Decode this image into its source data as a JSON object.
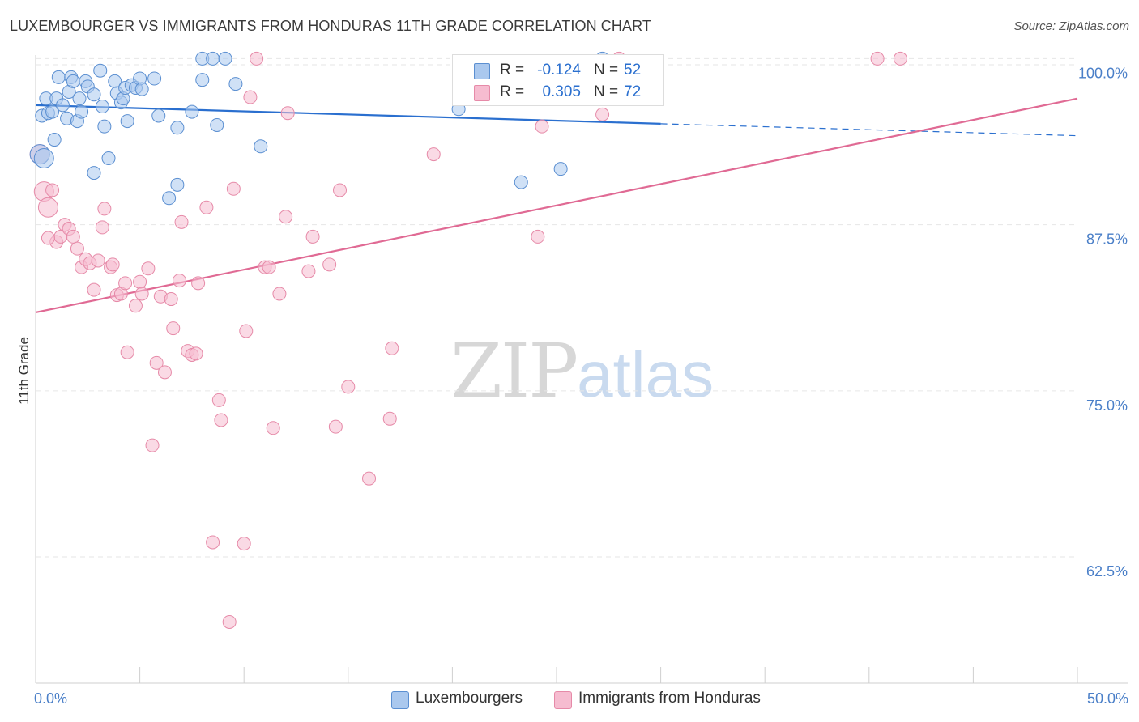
{
  "title": "LUXEMBOURGER VS IMMIGRANTS FROM HONDURAS 11TH GRADE CORRELATION CHART",
  "source": "Source: ZipAtlas.com",
  "watermark": {
    "zip": "ZIP",
    "atlas": "atlas"
  },
  "legend": {
    "r_label": "R =",
    "n_label": "N =",
    "rows": [
      {
        "r": "-0.124",
        "n": "52"
      },
      {
        "r": "0.305",
        "n": "72"
      }
    ]
  },
  "colors": {
    "blue_fill": "#aac8ee",
    "blue_stroke": "#5b8fd1",
    "blue_line": "#2a6fcf",
    "pink_fill": "#f6bcd0",
    "pink_stroke": "#e68aa8",
    "pink_line": "#e06a94",
    "tick_text": "#4a7fc8",
    "grid": "#e6e6e6"
  },
  "chart_data": {
    "type": "scatter",
    "title": "LUXEMBOURGER VS IMMIGRANTS FROM HONDURAS 11TH GRADE CORRELATION CHART",
    "xlabel": "",
    "ylabel": "11th Grade",
    "xlim": [
      0,
      50
    ],
    "ylim": [
      53,
      101
    ],
    "x_tick_labels": [
      "0.0%",
      "50.0%"
    ],
    "y_ticks": [
      {
        "value": 100,
        "label": "100.0%"
      },
      {
        "value": 87.5,
        "label": "87.5%"
      },
      {
        "value": 75,
        "label": "75.0%"
      },
      {
        "value": 62.5,
        "label": "62.5%"
      }
    ],
    "series": [
      {
        "name": "Luxembourgers",
        "r": -0.124,
        "n": 52,
        "trend": {
          "x0": 0,
          "y0": 96.5,
          "x1": 30,
          "y1": 95.1,
          "dash_to_x": 50,
          "dash_to_y": 94.2
        },
        "points": [
          [
            0.3,
            95.7
          ],
          [
            0.5,
            97.0
          ],
          [
            0.6,
            95.9
          ],
          [
            0.8,
            96.0
          ],
          [
            0.9,
            93.9
          ],
          [
            1.0,
            97.0
          ],
          [
            1.1,
            98.6
          ],
          [
            1.3,
            96.5
          ],
          [
            1.5,
            95.5
          ],
          [
            1.6,
            97.5
          ],
          [
            1.7,
            98.6
          ],
          [
            1.8,
            98.3
          ],
          [
            2.0,
            95.3
          ],
          [
            2.1,
            97.0
          ],
          [
            2.2,
            96.0
          ],
          [
            2.4,
            98.3
          ],
          [
            2.5,
            97.9
          ],
          [
            2.8,
            97.3
          ],
          [
            2.8,
            91.4
          ],
          [
            3.1,
            99.1
          ],
          [
            3.2,
            96.4
          ],
          [
            3.3,
            94.9
          ],
          [
            3.5,
            92.5
          ],
          [
            3.8,
            98.3
          ],
          [
            3.9,
            97.4
          ],
          [
            4.1,
            96.7
          ],
          [
            4.2,
            97.0
          ],
          [
            4.3,
            97.8
          ],
          [
            4.4,
            95.3
          ],
          [
            4.6,
            98.0
          ],
          [
            4.8,
            97.8
          ],
          [
            5.0,
            98.5
          ],
          [
            5.1,
            97.7
          ],
          [
            5.7,
            98.5
          ],
          [
            5.9,
            95.7
          ],
          [
            6.4,
            89.5
          ],
          [
            6.8,
            94.8
          ],
          [
            6.8,
            90.5
          ],
          [
            7.5,
            96.0
          ],
          [
            8.0,
            100.0
          ],
          [
            8.0,
            98.4
          ],
          [
            8.5,
            100.0
          ],
          [
            8.7,
            95.0
          ],
          [
            9.1,
            100.0
          ],
          [
            9.6,
            98.1
          ],
          [
            10.8,
            93.4
          ],
          [
            20.3,
            96.2
          ],
          [
            23.3,
            90.7
          ],
          [
            25.2,
            91.7
          ],
          [
            27.2,
            100.0
          ],
          [
            0.2,
            92.8
          ],
          [
            0.4,
            92.5
          ]
        ]
      },
      {
        "name": "Immigrants from Honduras",
        "r": 0.305,
        "n": 72,
        "trend": {
          "x0": 0,
          "y0": 80.9,
          "x1": 50,
          "y1": 97.0
        },
        "points": [
          [
            0.2,
            92.8
          ],
          [
            0.4,
            90.0
          ],
          [
            0.6,
            88.8
          ],
          [
            0.8,
            90.1
          ],
          [
            1.0,
            86.2
          ],
          [
            1.2,
            86.6
          ],
          [
            1.4,
            87.5
          ],
          [
            1.6,
            87.2
          ],
          [
            1.8,
            86.6
          ],
          [
            2.0,
            85.7
          ],
          [
            2.2,
            84.3
          ],
          [
            2.4,
            84.9
          ],
          [
            2.6,
            84.6
          ],
          [
            2.8,
            82.6
          ],
          [
            3.0,
            84.8
          ],
          [
            3.2,
            87.3
          ],
          [
            3.3,
            88.7
          ],
          [
            3.6,
            84.3
          ],
          [
            3.7,
            84.5
          ],
          [
            3.9,
            82.2
          ],
          [
            4.1,
            82.3
          ],
          [
            4.3,
            83.1
          ],
          [
            4.4,
            77.9
          ],
          [
            4.8,
            81.4
          ],
          [
            5.0,
            83.2
          ],
          [
            5.1,
            82.3
          ],
          [
            5.4,
            84.2
          ],
          [
            5.6,
            70.9
          ],
          [
            5.8,
            77.1
          ],
          [
            6.0,
            82.1
          ],
          [
            6.2,
            76.4
          ],
          [
            6.5,
            81.9
          ],
          [
            6.6,
            79.7
          ],
          [
            6.9,
            83.3
          ],
          [
            7.0,
            87.7
          ],
          [
            7.3,
            78.0
          ],
          [
            7.5,
            77.7
          ],
          [
            7.7,
            77.8
          ],
          [
            7.8,
            83.1
          ],
          [
            8.2,
            88.8
          ],
          [
            8.5,
            63.6
          ],
          [
            8.8,
            74.3
          ],
          [
            8.9,
            72.8
          ],
          [
            9.3,
            57.6
          ],
          [
            9.5,
            90.2
          ],
          [
            10.0,
            63.5
          ],
          [
            10.1,
            79.5
          ],
          [
            10.3,
            97.1
          ],
          [
            10.6,
            100.0
          ],
          [
            11.0,
            84.3
          ],
          [
            11.2,
            84.3
          ],
          [
            11.4,
            72.2
          ],
          [
            11.7,
            82.3
          ],
          [
            12.0,
            88.1
          ],
          [
            12.1,
            95.9
          ],
          [
            13.1,
            84.0
          ],
          [
            13.3,
            86.6
          ],
          [
            14.1,
            84.5
          ],
          [
            14.4,
            72.3
          ],
          [
            14.6,
            90.1
          ],
          [
            15.0,
            75.3
          ],
          [
            16.0,
            68.4
          ],
          [
            17.0,
            72.9
          ],
          [
            17.1,
            78.2
          ],
          [
            19.1,
            92.8
          ],
          [
            24.1,
            86.6
          ],
          [
            24.3,
            94.9
          ],
          [
            27.2,
            95.8
          ],
          [
            28.0,
            100.0
          ],
          [
            40.4,
            100.0
          ],
          [
            41.5,
            100.0
          ],
          [
            0.6,
            86.5
          ]
        ]
      }
    ],
    "legend_position": "top-center"
  }
}
